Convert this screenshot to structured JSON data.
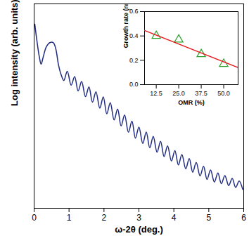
{
  "chart_data": [
    {
      "type": "line",
      "x_label": "ω-2θ (deg.)",
      "y_label": "Log intensity (arb. units)",
      "x": [
        0.02,
        0.08,
        0.15,
        0.2,
        0.26,
        0.35,
        0.45,
        0.55,
        0.62,
        0.7,
        0.78,
        0.85,
        0.95,
        1.06,
        1.16,
        1.26,
        1.36,
        1.47,
        1.57,
        1.67,
        1.77,
        1.88,
        1.98,
        2.08,
        2.18,
        2.29,
        2.39,
        2.49,
        2.59,
        2.7,
        2.8,
        2.9,
        3.0,
        3.11,
        3.21,
        3.31,
        3.41,
        3.52,
        3.62,
        3.72,
        3.82,
        3.93,
        4.03,
        4.13,
        4.23,
        4.34,
        4.44,
        4.54,
        4.64,
        4.75,
        4.85,
        4.95,
        5.05,
        5.16,
        5.26,
        5.36,
        5.46,
        5.57,
        5.67,
        5.77,
        5.87,
        5.97
      ],
      "values": [
        9.0,
        8.2,
        7.4,
        7.05,
        7.4,
        7.9,
        8.1,
        8.1,
        7.8,
        7.0,
        6.5,
        6.25,
        6.7,
        6.02,
        6.44,
        5.74,
        6.2,
        5.46,
        5.94,
        5.19,
        5.7,
        4.9,
        5.45,
        4.62,
        5.16,
        4.32,
        4.85,
        4.03,
        4.56,
        3.72,
        4.26,
        3.43,
        3.97,
        3.17,
        3.73,
        2.96,
        3.51,
        2.74,
        3.27,
        2.53,
        3.05,
        2.31,
        2.82,
        2.12,
        2.63,
        1.93,
        2.43,
        1.76,
        2.24,
        1.58,
        2.05,
        1.41,
        1.87,
        1.28,
        1.73,
        1.2,
        1.6,
        1.11,
        1.46,
        1.02,
        1.33,
        0.93
      ],
      "color": "#1f2a80",
      "xlim": [
        0,
        6
      ],
      "xticks": [
        0,
        1,
        2,
        3,
        4,
        5,
        6
      ],
      "ylim": [
        0,
        10
      ],
      "tick_labels": "x"
    },
    {
      "type": "scatter",
      "x_label": "OMR (%)",
      "y_label": "Growth rate (nm/min)",
      "series": [
        {
          "type": "scatter",
          "x": [
            12.5,
            25,
            37.5,
            50
          ],
          "values": [
            0.4,
            0.37,
            0.25,
            0.17
          ],
          "color": "#2ca02c",
          "marker": "triangle"
        },
        {
          "type": "line",
          "x": [
            6,
            58
          ],
          "values": [
            0.445,
            0.14
          ],
          "color": "#e8161b"
        }
      ],
      "xlim": [
        6,
        58
      ],
      "xticks": [
        {
          "value": 12.5,
          "label": "12.5"
        },
        {
          "value": 25,
          "label": "25.0"
        },
        {
          "value": 37.5,
          "label": "37.5"
        },
        {
          "value": 50,
          "label": "50.0"
        }
      ],
      "ylim": [
        0,
        0.6
      ],
      "yticks": [
        {
          "value": 0,
          "label": "0.0"
        },
        {
          "value": 0.2,
          "label": "0.2"
        },
        {
          "value": 0.4,
          "label": "0.4"
        },
        {
          "value": 0.6,
          "label": "0.6"
        }
      ]
    }
  ]
}
